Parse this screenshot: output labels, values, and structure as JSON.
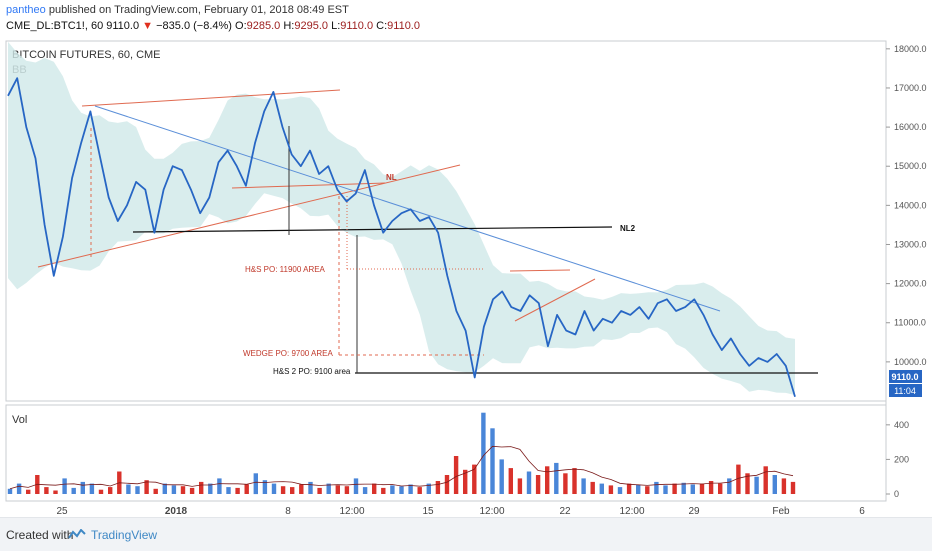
{
  "header": {
    "publisher": "pantheo",
    "published_text": "published on TradingView.com, February 01, 2018 08:49 EST",
    "symbol": "CME_DL:BTC1!, 60",
    "last": "9110.0",
    "change_arrow": "▼",
    "change": "−835.0 (−8.4%)",
    "o_label": "O:",
    "o_val": "9285.0",
    "h_label": "H:",
    "h_val": "9295.0",
    "l_label": "L:",
    "l_val": "9110.0",
    "c_label": "C:",
    "c_val": "9110.0"
  },
  "chart_data": {
    "type": "line",
    "title": "BITCOIN FUTURES, 60, CME",
    "indicator": "BB",
    "volume_label": "Vol",
    "ylim": [
      9000,
      18200
    ],
    "y_ticks": [
      "18000.0",
      "17000.0",
      "16000.0",
      "15000.0",
      "14000.0",
      "13000.0",
      "12000.0",
      "11000.0",
      "10000.0"
    ],
    "vol_ticks": [
      "400",
      "200",
      "0"
    ],
    "vol_ylim": [
      0,
      480
    ],
    "x_ticks": [
      "25",
      "2018",
      "8",
      "12:00",
      "15",
      "12:00",
      "22",
      "12:00",
      "29",
      "Feb",
      "6"
    ],
    "price_tag": "9110.0",
    "time_tag": "11:04",
    "annotations": {
      "nl": "NL",
      "nl2": "NL2",
      "hs_po": "H&S PO: 11900 AREA",
      "wedge_po": "WEDGE PO: 9700 AREA",
      "hs2_po": "H&S 2 PO: 9100 area"
    },
    "series": [
      {
        "values": [
          16800,
          17250,
          16000,
          15200,
          13500,
          12200,
          13200,
          14700,
          15600,
          16400,
          15300,
          14200,
          13600,
          14000,
          14600,
          14400,
          13300,
          14400,
          15000,
          14900,
          14400,
          13800,
          14200,
          15100,
          15400,
          15000,
          14500,
          15600,
          16400,
          16900,
          16000,
          15300,
          15000,
          15400,
          14800,
          15000,
          14400,
          14100,
          14300,
          14900,
          14000,
          13300,
          13600,
          13800,
          13900,
          13600,
          13700,
          13300,
          12200,
          11300,
          10800,
          9600,
          10900,
          11600,
          11800,
          11400,
          11300,
          11700,
          11500,
          10400,
          11200,
          10800,
          10700,
          11300,
          10800,
          11100,
          11000,
          11300,
          11200,
          11400,
          11100,
          11500,
          11600,
          11300,
          11400,
          11600,
          11200,
          10700,
          10300,
          10600,
          10200,
          9900,
          10100,
          10000,
          10200,
          9900,
          9110
        ]
      }
    ],
    "volume": [
      30,
      60,
      25,
      110,
      40,
      20,
      90,
      35,
      70,
      60,
      25,
      40,
      130,
      55,
      45,
      80,
      30,
      60,
      50,
      45,
      35,
      70,
      60,
      90,
      40,
      35,
      55,
      120,
      80,
      60,
      45,
      40,
      55,
      70,
      35,
      60,
      50,
      45,
      90,
      40,
      60,
      35,
      50,
      45,
      55,
      40,
      60,
      75,
      110,
      220,
      140,
      170,
      470,
      380,
      200,
      150,
      90,
      130,
      110,
      160,
      180,
      120,
      150,
      90,
      70,
      60,
      50,
      40,
      60,
      55,
      45,
      70,
      50,
      60,
      65,
      55,
      60,
      75,
      60,
      90,
      170,
      120,
      100,
      160,
      110,
      90,
      70
    ]
  }
}
